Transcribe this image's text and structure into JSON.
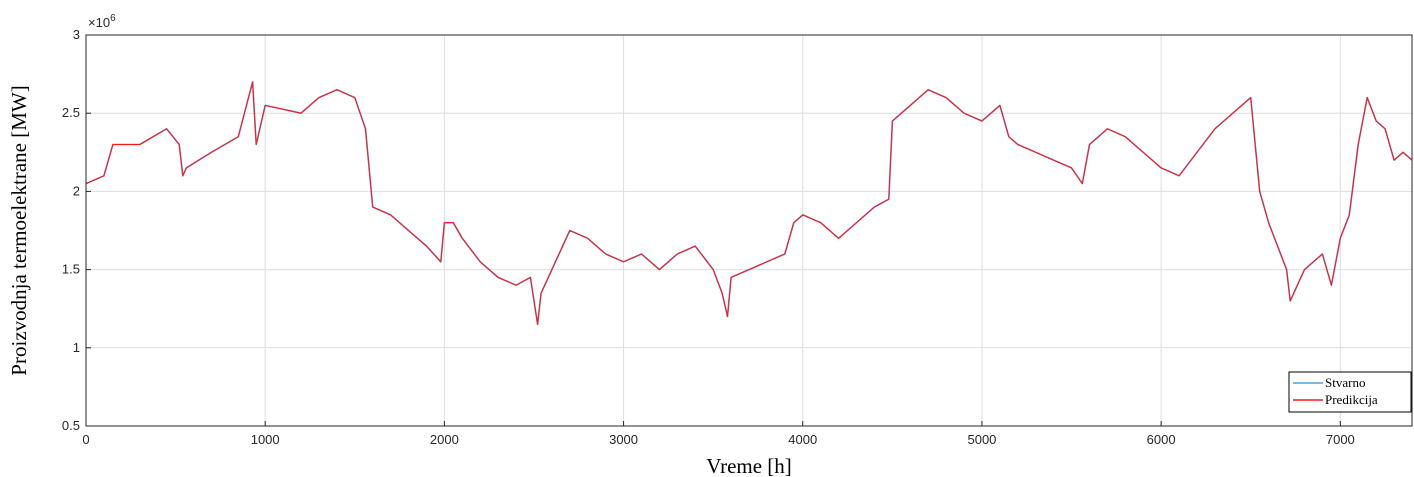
{
  "chart_data": {
    "type": "line",
    "xlabel": "Vreme [h]",
    "ylabel": "Proizvodnja termoelektrane  [MW]",
    "y_exponent_label": "×10",
    "y_exponent_power": "6",
    "xlim": [
      0,
      7400
    ],
    "ylim": [
      0.5,
      3
    ],
    "y_unit_multiplier": 1000000,
    "grid": true,
    "legend_position": "bottom-right",
    "x_ticks": [
      0,
      1000,
      2000,
      3000,
      4000,
      5000,
      6000,
      7000
    ],
    "x_tick_labels": [
      "0",
      "1000",
      "2000",
      "3000",
      "4000",
      "5000",
      "6000",
      "7000"
    ],
    "y_ticks": [
      0.5,
      1,
      1.5,
      2,
      2.5,
      3
    ],
    "y_tick_labels": [
      "0.5",
      "1",
      "1.5",
      "2",
      "2.5",
      "3"
    ],
    "colors": {
      "Stvarno": "#4aa3df",
      "Predikcija": "#ff1a1a"
    },
    "series": [
      {
        "name": "Stvarno",
        "x": [
          0,
          100,
          150,
          300,
          450,
          520,
          540,
          560,
          700,
          850,
          930,
          950,
          1000,
          1200,
          1300,
          1400,
          1500,
          1560,
          1600,
          1700,
          1800,
          1900,
          1980,
          2000,
          2050,
          2100,
          2200,
          2300,
          2400,
          2480,
          2520,
          2540,
          2600,
          2700,
          2800,
          2900,
          3000,
          3100,
          3200,
          3300,
          3400,
          3500,
          3550,
          3580,
          3600,
          3700,
          3800,
          3900,
          3950,
          4000,
          4100,
          4200,
          4300,
          4400,
          4480,
          4500,
          4600,
          4700,
          4800,
          4900,
          5000,
          5100,
          5150,
          5200,
          5300,
          5400,
          5500,
          5560,
          5600,
          5700,
          5800,
          5900,
          6000,
          6100,
          6200,
          6300,
          6400,
          6500,
          6550,
          6600,
          6700,
          6720,
          6800,
          6900,
          6950,
          7000,
          7050,
          7100,
          7150,
          7200,
          7250,
          7300,
          7350,
          7400
        ],
        "y": [
          2.05,
          2.1,
          2.3,
          2.3,
          2.4,
          2.3,
          2.1,
          2.15,
          2.25,
          2.35,
          2.7,
          2.3,
          2.55,
          2.5,
          2.6,
          2.65,
          2.6,
          2.4,
          1.9,
          1.85,
          1.75,
          1.65,
          1.55,
          1.8,
          1.8,
          1.7,
          1.55,
          1.45,
          1.4,
          1.45,
          1.15,
          1.35,
          1.5,
          1.75,
          1.7,
          1.6,
          1.55,
          1.6,
          1.5,
          1.6,
          1.65,
          1.5,
          1.35,
          1.2,
          1.45,
          1.5,
          1.55,
          1.6,
          1.8,
          1.85,
          1.8,
          1.7,
          1.8,
          1.9,
          1.95,
          2.45,
          2.55,
          2.65,
          2.6,
          2.5,
          2.45,
          2.55,
          2.35,
          2.3,
          2.25,
          2.2,
          2.15,
          2.05,
          2.3,
          2.4,
          2.35,
          2.25,
          2.15,
          2.1,
          2.25,
          2.4,
          2.5,
          2.6,
          2.0,
          1.8,
          1.5,
          1.3,
          1.5,
          1.6,
          1.4,
          1.7,
          1.85,
          2.3,
          2.6,
          2.45,
          2.4,
          2.2,
          2.25,
          2.2
        ]
      },
      {
        "name": "Predikcija",
        "x": [
          0,
          100,
          150,
          300,
          450,
          520,
          540,
          560,
          700,
          850,
          930,
          950,
          1000,
          1200,
          1300,
          1400,
          1500,
          1560,
          1600,
          1700,
          1800,
          1900,
          1980,
          2000,
          2050,
          2100,
          2200,
          2300,
          2400,
          2480,
          2520,
          2540,
          2600,
          2700,
          2800,
          2900,
          3000,
          3100,
          3200,
          3300,
          3400,
          3500,
          3550,
          3580,
          3600,
          3700,
          3800,
          3900,
          3950,
          4000,
          4100,
          4200,
          4300,
          4400,
          4480,
          4500,
          4600,
          4700,
          4800,
          4900,
          5000,
          5100,
          5150,
          5200,
          5300,
          5400,
          5500,
          5560,
          5600,
          5700,
          5800,
          5900,
          6000,
          6100,
          6200,
          6300,
          6400,
          6500,
          6550,
          6600,
          6700,
          6720,
          6800,
          6900,
          6950,
          7000,
          7050,
          7100,
          7150,
          7200,
          7250,
          7300,
          7350,
          7400
        ],
        "y": [
          2.05,
          2.1,
          2.3,
          2.3,
          2.4,
          2.3,
          2.1,
          2.15,
          2.25,
          2.35,
          2.7,
          2.3,
          2.55,
          2.5,
          2.6,
          2.65,
          2.6,
          2.4,
          1.9,
          1.85,
          1.75,
          1.65,
          1.55,
          1.8,
          1.8,
          1.7,
          1.55,
          1.45,
          1.4,
          1.45,
          1.15,
          1.35,
          1.5,
          1.75,
          1.7,
          1.6,
          1.55,
          1.6,
          1.5,
          1.6,
          1.65,
          1.5,
          1.35,
          1.2,
          1.45,
          1.5,
          1.55,
          1.6,
          1.8,
          1.85,
          1.8,
          1.7,
          1.8,
          1.9,
          1.95,
          2.45,
          2.55,
          2.65,
          2.6,
          2.5,
          2.45,
          2.55,
          2.35,
          2.3,
          2.25,
          2.2,
          2.15,
          2.05,
          2.3,
          2.4,
          2.35,
          2.25,
          2.15,
          2.1,
          2.25,
          2.4,
          2.5,
          2.6,
          2.0,
          1.8,
          1.5,
          1.3,
          1.5,
          1.6,
          1.4,
          1.7,
          1.85,
          2.3,
          2.6,
          2.45,
          2.4,
          2.2,
          2.25,
          2.2
        ]
      }
    ]
  }
}
